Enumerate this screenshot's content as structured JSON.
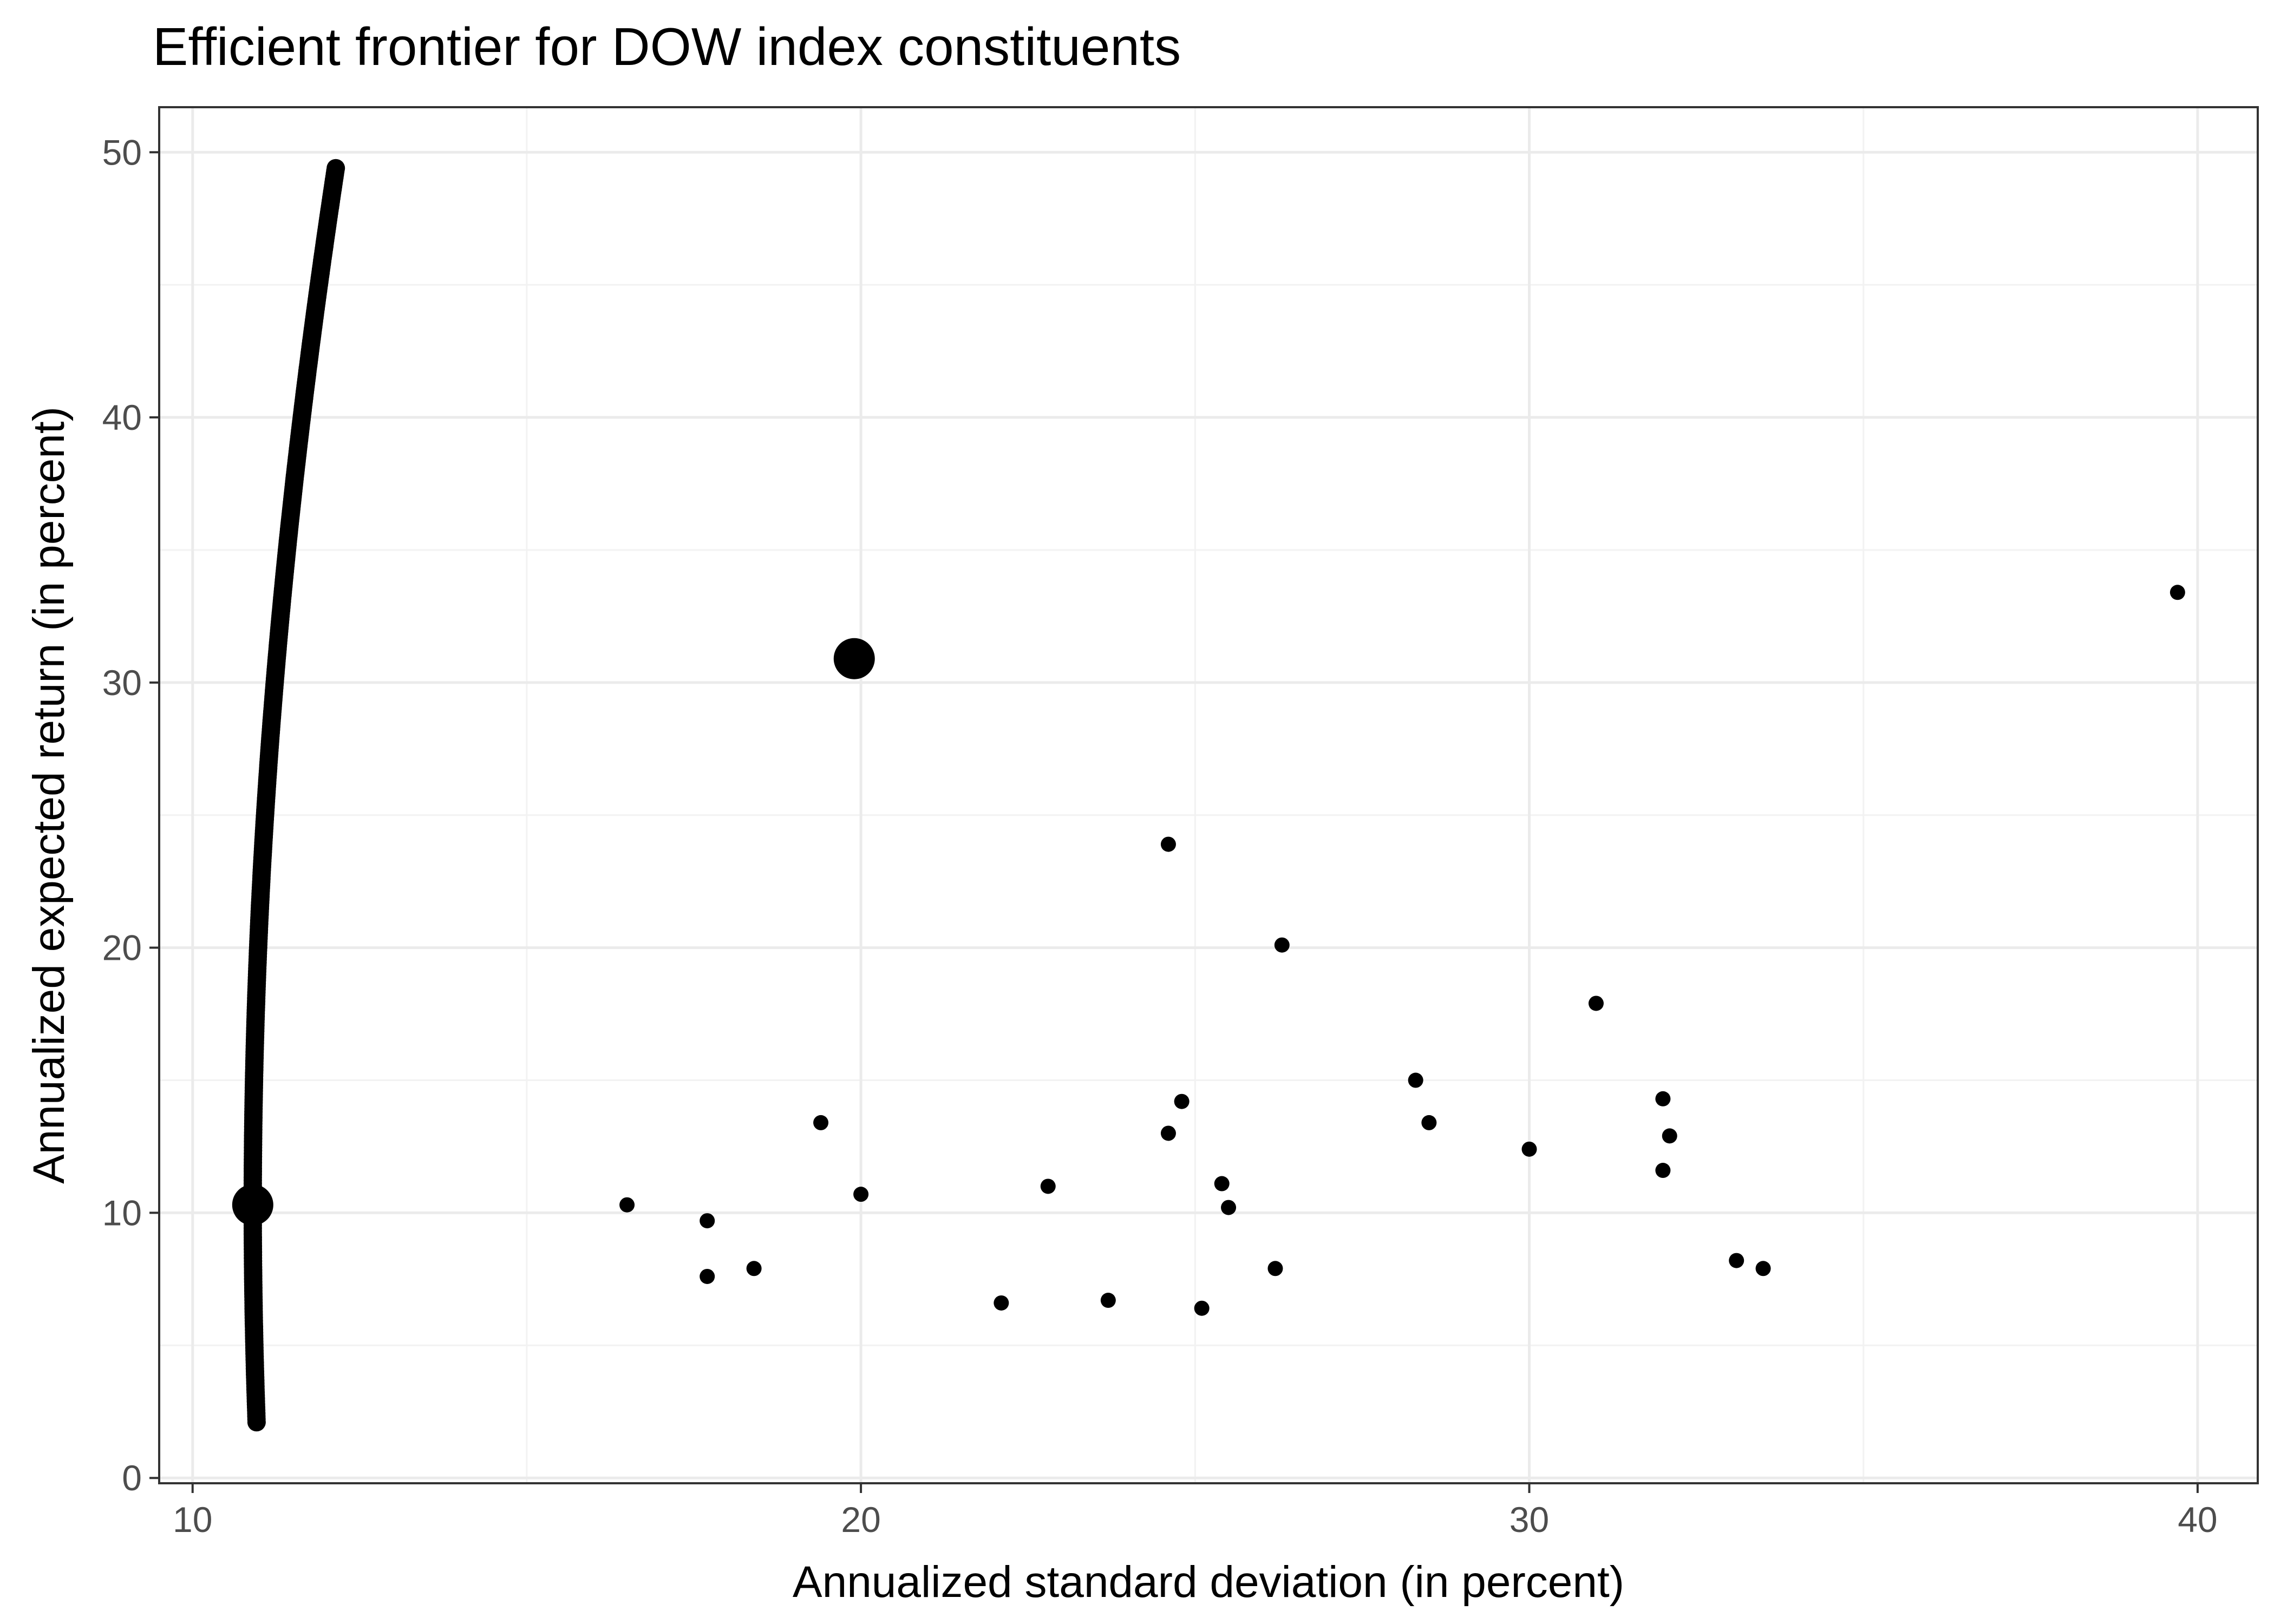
{
  "chart_data": {
    "type": "scatter",
    "title": "Efficient frontier for DOW index constituents",
    "xlabel": "Annualized standard deviation (in percent)",
    "ylabel": "Annualized expected return (in percent)",
    "xlim": [
      9.5,
      40.9
    ],
    "ylim": [
      -0.2,
      51.7
    ],
    "x_ticks": [
      10,
      20,
      30,
      40
    ],
    "y_ticks": [
      0,
      10,
      20,
      30,
      40,
      50
    ],
    "x_tick_labels": [
      "10",
      "20",
      "30",
      "40"
    ],
    "y_tick_labels": [
      "0",
      "10",
      "20",
      "30",
      "40",
      "50"
    ],
    "grid": true,
    "legend": "none",
    "colors": {
      "points": "#000000",
      "grid": "#ebebeb",
      "border": "#333333"
    },
    "series": [
      {
        "role": "frontier",
        "style": "dense-dots",
        "min_variance": {
          "sd": 10.9,
          "ret": 10.3
        },
        "frontier_curvature": 53.4,
        "ret_range": [
          2.1,
          49.4
        ]
      },
      {
        "role": "highlighted-portfolios",
        "points": [
          {
            "x": 10.9,
            "y": 10.3
          },
          {
            "x": 19.9,
            "y": 30.9
          }
        ]
      },
      {
        "role": "assets",
        "points": [
          {
            "x": 16.5,
            "y": 10.3
          },
          {
            "x": 17.7,
            "y": 9.7
          },
          {
            "x": 17.7,
            "y": 7.6
          },
          {
            "x": 18.4,
            "y": 7.9
          },
          {
            "x": 19.4,
            "y": 13.4
          },
          {
            "x": 20.0,
            "y": 10.7
          },
          {
            "x": 22.1,
            "y": 6.6
          },
          {
            "x": 22.8,
            "y": 11.0
          },
          {
            "x": 23.7,
            "y": 6.7
          },
          {
            "x": 24.6,
            "y": 23.9
          },
          {
            "x": 24.6,
            "y": 13.0
          },
          {
            "x": 24.8,
            "y": 14.2
          },
          {
            "x": 25.1,
            "y": 6.4
          },
          {
            "x": 25.4,
            "y": 11.1
          },
          {
            "x": 25.5,
            "y": 10.2
          },
          {
            "x": 26.2,
            "y": 7.9
          },
          {
            "x": 26.3,
            "y": 20.1
          },
          {
            "x": 28.3,
            "y": 15.0
          },
          {
            "x": 28.5,
            "y": 13.4
          },
          {
            "x": 30.0,
            "y": 12.4
          },
          {
            "x": 31.0,
            "y": 17.9
          },
          {
            "x": 32.0,
            "y": 14.3
          },
          {
            "x": 32.1,
            "y": 12.9
          },
          {
            "x": 32.0,
            "y": 11.6
          },
          {
            "x": 33.1,
            "y": 8.2
          },
          {
            "x": 33.5,
            "y": 7.9
          },
          {
            "x": 39.7,
            "y": 33.4
          }
        ]
      }
    ]
  }
}
